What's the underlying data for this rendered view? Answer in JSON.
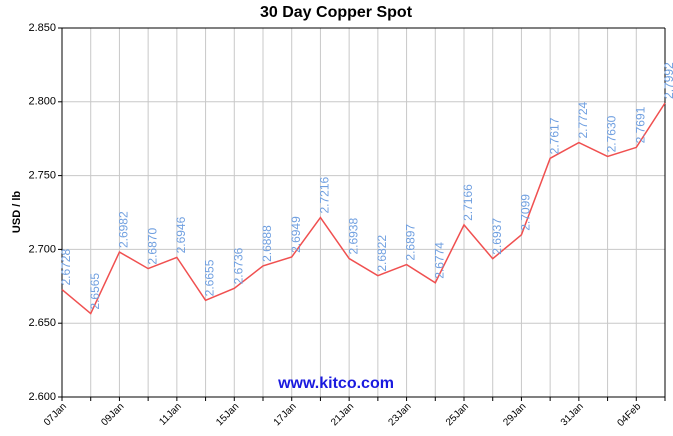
{
  "chart_data": {
    "type": "line",
    "title": "30 Day Copper Spot",
    "y_label": "USD / lb",
    "watermark": "www.kitco.com",
    "categories": [
      "07Jan",
      null,
      "09Jan",
      null,
      "11Jan",
      null,
      "15Jan",
      null,
      "17Jan",
      null,
      "21Jan",
      null,
      "23Jan",
      null,
      "25Jan",
      null,
      "29Jan",
      null,
      "31Jan",
      null,
      "04Feb",
      null
    ],
    "values": [
      2.6728,
      2.6565,
      2.6982,
      2.687,
      2.6946,
      2.6655,
      2.6736,
      2.6888,
      2.6949,
      2.7216,
      2.6938,
      2.6822,
      2.6897,
      2.6774,
      2.7166,
      2.6937,
      2.7099,
      2.7617,
      2.7724,
      2.763,
      2.7691,
      2.7992
    ],
    "value_labels": [
      "2.6728",
      "2.6565",
      "2.6982",
      "2.6870",
      "2.6946",
      "2.6655",
      "2.6736",
      "2.6888",
      "2.6949",
      "2.7216",
      "2.6938",
      "2.6822",
      "2.6897",
      "2.6774",
      "2.7166",
      "2.6937",
      "2.7099",
      "2.7617",
      "2.7724",
      "2.7630",
      "2.7691",
      "2.7992"
    ],
    "color": "#f05050",
    "label_color": "#6f9fe0",
    "ylim": [
      2.6,
      2.85
    ],
    "yticks": [
      {
        "value": 2.6,
        "label": "2.600"
      },
      {
        "value": 2.65,
        "label": "2.650"
      },
      {
        "value": 2.7,
        "label": "2.700"
      },
      {
        "value": 2.75,
        "label": "2.750"
      },
      {
        "value": 2.8,
        "label": "2.800"
      },
      {
        "value": 2.85,
        "label": "2.850"
      }
    ],
    "grid": true
  }
}
